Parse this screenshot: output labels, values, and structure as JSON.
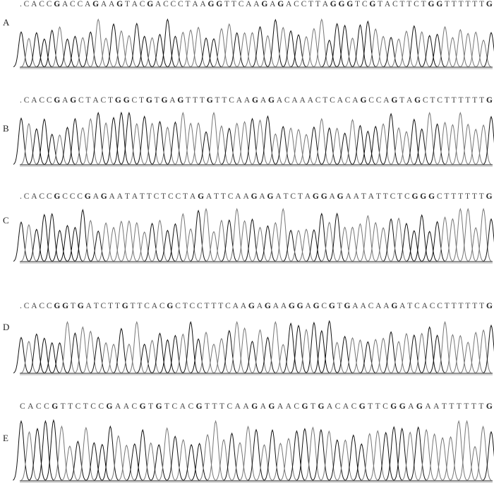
{
  "panels": [
    {
      "label": "A",
      "sequence": ".CACCGACCAGAAGTACGACCCTAAGGTTCAAGAGACCTTAGGGTCGTACTTCTGGTTTTTTG"
    },
    {
      "label": "B",
      "sequence": ".CACCGAGCTACTGGCTGTGAGTTTGTTCAAGAGACAAACTCACAGCCAGTAGCTCTTTTTTG"
    },
    {
      "label": "C",
      "sequence": ".CACCGCCCGAGAATATTCTCCTAGATTCAAGAGATCTAGGAGAATATTCTCGGGCTTTTTTG"
    },
    {
      "label": "D",
      "sequence": ".CACCGGTGATCTTGTTCACGCTCCTTTCAAGAGAAGGAGCGTGAACAAGATCACCTTTTTTG"
    },
    {
      "label": "E",
      "sequence": "CACCGTTCTCCGAACGTGTCACGTTTCAAGAGAACGTGACACGTTCGGAGAATTTTTTG"
    }
  ],
  "colors": {
    "trace_dark": "#111111",
    "trace_gray": "#777777",
    "baseline": "#555555"
  }
}
